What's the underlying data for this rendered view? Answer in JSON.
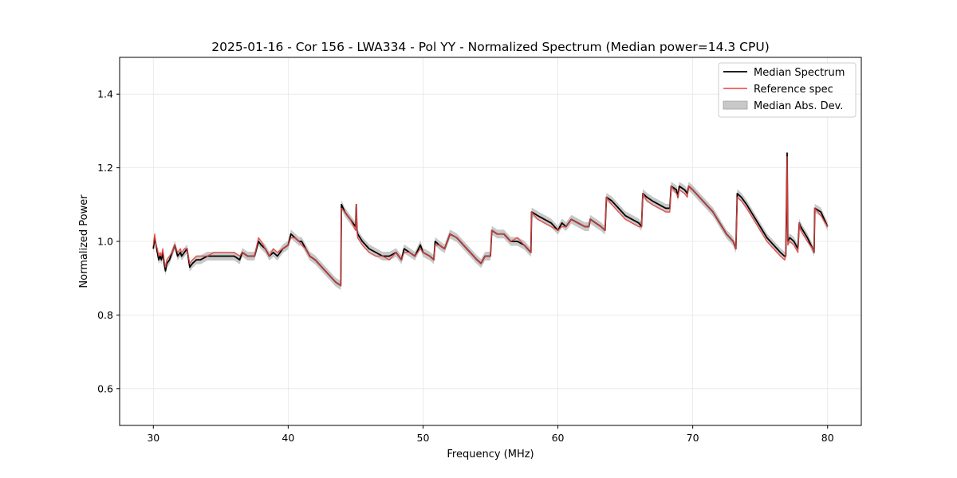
{
  "chart_data": {
    "type": "line",
    "title": "2025-01-16 - Cor 156 - LWA334 - Pol YY - Normalized Spectrum (Median power=14.3 CPU)",
    "xlabel": "Frequency (MHz)",
    "ylabel": "Normalized Power",
    "xlim": [
      27.5,
      82.5
    ],
    "ylim": [
      0.5,
      1.5
    ],
    "xticks": [
      30,
      40,
      50,
      60,
      70,
      80
    ],
    "yticks": [
      0.6,
      0.8,
      1.0,
      1.2,
      1.4
    ],
    "xtick_labels": [
      "30",
      "40",
      "50",
      "60",
      "70",
      "80"
    ],
    "ytick_labels": [
      "0.6",
      "0.8",
      "1.0",
      "1.2",
      "1.4"
    ],
    "grid": true,
    "legend_position": "top-right",
    "colors": {
      "median": "#000000",
      "reference": "#e8423f",
      "mad": "#b0b0b0"
    },
    "mad_halfwidth": 0.012,
    "series": [
      {
        "name": "Median Spectrum",
        "style": "line",
        "x": [
          30.0,
          30.1,
          30.2,
          30.3,
          30.4,
          30.5,
          30.6,
          30.7,
          30.8,
          30.9,
          31.0,
          31.2,
          31.4,
          31.6,
          31.8,
          32.0,
          32.1,
          32.3,
          32.5,
          32.7,
          32.9,
          33.2,
          33.5,
          34.0,
          34.5,
          35.0,
          35.5,
          36.0,
          36.4,
          36.6,
          37.0,
          37.5,
          37.8,
          38.0,
          38.3,
          38.6,
          38.9,
          39.2,
          39.6,
          40.0,
          40.2,
          40.5,
          40.8,
          41.0,
          41.3,
          41.6,
          42.0,
          42.5,
          43.0,
          43.5,
          43.9,
          43.95,
          44.2,
          44.6,
          45.0,
          45.05,
          45.1,
          45.15,
          45.5,
          46.0,
          46.5,
          47.0,
          47.5,
          48.0,
          48.4,
          48.6,
          49.0,
          49.4,
          49.8,
          50.0,
          50.5,
          50.8,
          50.9,
          51.2,
          51.6,
          52.0,
          52.5,
          53.0,
          53.5,
          54.0,
          54.3,
          54.6,
          55.0,
          55.1,
          55.5,
          56.0,
          56.5,
          57.0,
          57.5,
          58.0,
          58.05,
          58.5,
          59.0,
          59.5,
          60.0,
          60.3,
          60.6,
          61.0,
          61.5,
          62.0,
          62.3,
          62.4,
          62.8,
          63.2,
          63.5,
          63.6,
          64.0,
          64.5,
          65.0,
          65.5,
          66.0,
          66.2,
          66.3,
          66.6,
          67.0,
          67.5,
          68.0,
          68.3,
          68.4,
          68.8,
          68.9,
          69.0,
          69.4,
          69.6,
          69.7,
          70.0,
          70.5,
          71.0,
          71.5,
          72.0,
          72.5,
          73.0,
          73.2,
          73.3,
          73.6,
          74.0,
          74.5,
          75.0,
          75.5,
          76.0,
          76.5,
          76.8,
          76.9,
          77.0,
          77.05,
          77.2,
          77.5,
          77.8,
          77.9,
          78.0,
          78.5,
          78.9,
          79.0,
          79.05,
          79.5,
          80.0
        ],
        "y": [
          0.98,
          1.01,
          0.99,
          0.97,
          0.95,
          0.96,
          0.95,
          0.97,
          0.94,
          0.92,
          0.94,
          0.95,
          0.97,
          0.99,
          0.96,
          0.97,
          0.96,
          0.97,
          0.98,
          0.93,
          0.94,
          0.95,
          0.95,
          0.96,
          0.96,
          0.96,
          0.96,
          0.96,
          0.95,
          0.97,
          0.96,
          0.96,
          1.0,
          0.99,
          0.98,
          0.96,
          0.97,
          0.96,
          0.98,
          0.99,
          1.02,
          1.01,
          1.0,
          1.0,
          0.98,
          0.96,
          0.95,
          0.93,
          0.91,
          0.89,
          0.88,
          1.1,
          1.08,
          1.06,
          1.04,
          1.1,
          1.03,
          1.02,
          1.0,
          0.98,
          0.97,
          0.96,
          0.96,
          0.97,
          0.95,
          0.98,
          0.97,
          0.96,
          0.99,
          0.97,
          0.96,
          0.95,
          1.0,
          0.99,
          0.98,
          1.02,
          1.01,
          0.99,
          0.97,
          0.95,
          0.94,
          0.96,
          0.96,
          1.03,
          1.02,
          1.02,
          1.0,
          1.0,
          0.99,
          0.97,
          1.08,
          1.07,
          1.06,
          1.05,
          1.03,
          1.05,
          1.04,
          1.06,
          1.05,
          1.04,
          1.04,
          1.06,
          1.05,
          1.04,
          1.03,
          1.12,
          1.11,
          1.09,
          1.07,
          1.06,
          1.05,
          1.04,
          1.13,
          1.12,
          1.11,
          1.1,
          1.09,
          1.09,
          1.15,
          1.14,
          1.12,
          1.15,
          1.14,
          1.13,
          1.15,
          1.14,
          1.12,
          1.1,
          1.08,
          1.05,
          1.02,
          1.0,
          0.98,
          1.13,
          1.12,
          1.1,
          1.07,
          1.04,
          1.01,
          0.99,
          0.97,
          0.96,
          0.96,
          1.24,
          1.0,
          1.01,
          1.0,
          0.98,
          1.05,
          1.04,
          1.01,
          0.98,
          0.97,
          1.09,
          1.08,
          1.04
        ]
      },
      {
        "name": "Reference spec",
        "style": "line",
        "x": [
          30.0,
          30.1,
          30.2,
          30.3,
          30.4,
          30.5,
          30.6,
          30.7,
          30.8,
          30.9,
          31.0,
          31.2,
          31.4,
          31.6,
          31.8,
          32.0,
          32.1,
          32.3,
          32.5,
          32.7,
          32.9,
          33.2,
          33.5,
          34.0,
          34.5,
          35.0,
          35.5,
          36.0,
          36.4,
          36.6,
          37.0,
          37.5,
          37.8,
          38.0,
          38.3,
          38.6,
          38.9,
          39.2,
          39.6,
          40.0,
          40.2,
          40.5,
          40.8,
          41.0,
          41.3,
          41.6,
          42.0,
          42.5,
          43.0,
          43.5,
          43.9,
          43.95,
          44.2,
          44.6,
          45.0,
          45.05,
          45.1,
          45.15,
          45.5,
          46.0,
          46.5,
          47.0,
          47.5,
          48.0,
          48.4,
          48.6,
          49.0,
          49.4,
          49.8,
          50.0,
          50.5,
          50.8,
          50.9,
          51.2,
          51.6,
          52.0,
          52.5,
          53.0,
          53.5,
          54.0,
          54.3,
          54.6,
          55.0,
          55.1,
          55.5,
          56.0,
          56.5,
          57.0,
          57.5,
          58.0,
          58.05,
          58.5,
          59.0,
          59.5,
          60.0,
          60.3,
          60.6,
          61.0,
          61.5,
          62.0,
          62.3,
          62.4,
          62.8,
          63.2,
          63.5,
          63.6,
          64.0,
          64.5,
          65.0,
          65.5,
          66.0,
          66.2,
          66.3,
          66.6,
          67.0,
          67.5,
          68.0,
          68.3,
          68.4,
          68.8,
          68.9,
          69.0,
          69.4,
          69.6,
          69.7,
          70.0,
          70.5,
          71.0,
          71.5,
          72.0,
          72.5,
          73.0,
          73.2,
          73.3,
          73.6,
          74.0,
          74.5,
          75.0,
          75.5,
          76.0,
          76.5,
          76.8,
          76.9,
          77.0,
          77.05,
          77.2,
          77.5,
          77.8,
          77.9,
          78.0,
          78.5,
          78.9,
          79.0,
          79.05,
          79.5,
          80.0
        ],
        "y": [
          0.99,
          1.02,
          0.99,
          0.98,
          0.96,
          0.97,
          0.96,
          0.98,
          0.95,
          0.93,
          0.95,
          0.96,
          0.97,
          0.99,
          0.97,
          0.98,
          0.97,
          0.98,
          0.98,
          0.94,
          0.95,
          0.96,
          0.96,
          0.96,
          0.97,
          0.97,
          0.97,
          0.97,
          0.96,
          0.97,
          0.96,
          0.96,
          1.01,
          1.0,
          0.98,
          0.96,
          0.98,
          0.97,
          0.98,
          0.99,
          1.01,
          1.01,
          1.0,
          0.99,
          0.98,
          0.96,
          0.95,
          0.93,
          0.91,
          0.89,
          0.88,
          1.09,
          1.08,
          1.06,
          1.03,
          1.1,
          1.03,
          1.01,
          0.99,
          0.97,
          0.96,
          0.96,
          0.95,
          0.97,
          0.95,
          0.97,
          0.97,
          0.96,
          0.98,
          0.97,
          0.96,
          0.95,
          0.99,
          0.99,
          0.98,
          1.02,
          1.01,
          0.99,
          0.97,
          0.95,
          0.94,
          0.96,
          0.96,
          1.03,
          1.02,
          1.02,
          1.0,
          1.01,
          0.99,
          0.97,
          1.08,
          1.06,
          1.05,
          1.04,
          1.03,
          1.04,
          1.04,
          1.06,
          1.05,
          1.04,
          1.04,
          1.06,
          1.05,
          1.04,
          1.03,
          1.12,
          1.1,
          1.08,
          1.06,
          1.05,
          1.04,
          1.04,
          1.13,
          1.11,
          1.1,
          1.09,
          1.08,
          1.08,
          1.15,
          1.13,
          1.12,
          1.14,
          1.13,
          1.12,
          1.15,
          1.14,
          1.12,
          1.1,
          1.08,
          1.05,
          1.02,
          1.0,
          0.98,
          1.12,
          1.11,
          1.09,
          1.06,
          1.03,
          1.0,
          0.98,
          0.96,
          0.95,
          0.96,
          1.23,
          0.99,
          1.0,
          0.99,
          0.97,
          1.05,
          1.03,
          1.0,
          0.98,
          0.97,
          1.09,
          1.07,
          1.04
        ]
      },
      {
        "name": "Median Abs. Dev.",
        "style": "band"
      }
    ]
  }
}
